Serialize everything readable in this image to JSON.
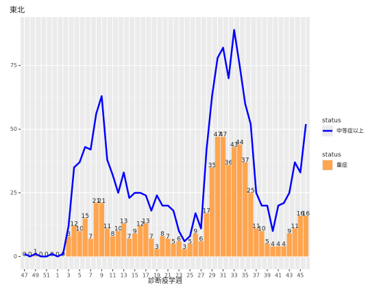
{
  "chart_data": {
    "type": "combo",
    "title": "東北",
    "x_label": "診断疫学週",
    "legend_title": "status",
    "legend_position": "right",
    "grid": true,
    "categories": [
      "47",
      null,
      "49",
      null,
      "51",
      null,
      "1",
      null,
      "3",
      null,
      "5",
      null,
      "7",
      null,
      "9",
      null,
      "11",
      null,
      "13",
      null,
      "15",
      null,
      "17",
      null,
      "19",
      null,
      "21",
      null,
      "23",
      null,
      "25",
      null,
      "27",
      null,
      "29",
      null,
      "31",
      null,
      "33",
      null,
      "35",
      null,
      "37",
      null,
      "39",
      null,
      "41",
      null,
      "43",
      null,
      "45",
      null
    ],
    "series": [
      {
        "name": "中等症以上",
        "type": "line",
        "color": "#0000ff",
        "values": [
          1,
          0,
          1,
          0,
          0,
          1,
          0,
          1,
          12,
          35,
          37,
          43,
          42,
          56,
          63,
          38,
          32,
          25,
          33,
          23,
          25,
          25,
          24,
          18,
          24,
          20,
          20,
          18,
          10,
          6,
          8,
          17,
          11,
          42,
          63,
          78,
          82,
          70,
          89,
          75,
          60,
          52,
          25,
          20,
          20,
          10,
          20,
          21,
          25,
          37,
          33,
          52
        ]
      },
      {
        "name": "重症",
        "type": "bar",
        "color": "#ffa54f",
        "values": [
          0,
          0,
          1,
          0,
          0,
          0,
          0,
          0,
          8,
          12,
          10,
          15,
          7,
          21,
          21,
          11,
          8,
          10,
          13,
          7,
          9,
          12,
          13,
          7,
          3,
          8,
          7,
          5,
          6,
          3,
          5,
          9,
          6,
          17,
          35,
          47,
          47,
          36,
          43,
          44,
          37,
          25,
          11,
          10,
          5,
          4,
          4,
          4,
          9,
          11,
          16,
          16
        ]
      }
    ],
    "ylim": [
      -5,
      94
    ],
    "yticks": [
      0,
      25,
      50,
      75
    ]
  }
}
